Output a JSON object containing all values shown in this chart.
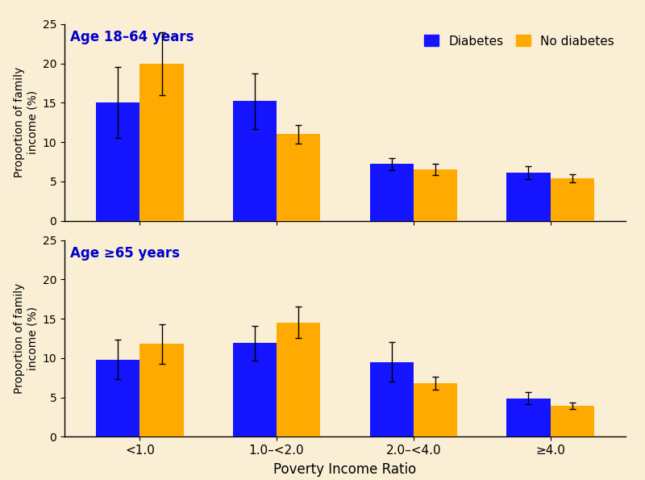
{
  "background_color": "#faefd4",
  "panel1_title": "Age 18–64 years",
  "panel2_title": "Age ≥65 years",
  "xlabel": "Poverty Income Ratio",
  "ylabel": "Proportion of family\nincome (%)",
  "categories": [
    "<1.0",
    "1.0–<2.0",
    "2.0–<4.0",
    "≥4.0"
  ],
  "legend_labels": [
    "Diabetes",
    "No diabetes"
  ],
  "title_color": "#0000cc",
  "bar_color_diabetes": "#1414ff",
  "bar_color_no_diabetes": "#ffaa00",
  "panel1": {
    "diabetes_values": [
      15.0,
      15.2,
      7.2,
      6.1
    ],
    "diabetes_err_low": [
      4.5,
      3.5,
      0.8,
      0.8
    ],
    "diabetes_err_high": [
      4.5,
      3.5,
      0.8,
      0.8
    ],
    "no_diabetes_values": [
      20.0,
      11.0,
      6.5,
      5.4
    ],
    "no_diabetes_err_low": [
      4.0,
      1.2,
      0.7,
      0.5
    ],
    "no_diabetes_err_high": [
      4.0,
      1.2,
      0.7,
      0.5
    ]
  },
  "panel2": {
    "diabetes_values": [
      9.8,
      11.9,
      9.5,
      4.9
    ],
    "diabetes_err_low": [
      2.5,
      2.2,
      2.5,
      0.8
    ],
    "diabetes_err_high": [
      2.5,
      2.2,
      2.5,
      0.8
    ],
    "no_diabetes_values": [
      11.8,
      14.5,
      6.8,
      3.9
    ],
    "no_diabetes_err_low": [
      2.5,
      2.0,
      0.8,
      0.4
    ],
    "no_diabetes_err_high": [
      2.5,
      2.0,
      0.8,
      0.4
    ]
  },
  "ylim": [
    0,
    25
  ],
  "yticks": [
    0,
    5,
    10,
    15,
    20,
    25
  ],
  "bar_width": 0.32
}
